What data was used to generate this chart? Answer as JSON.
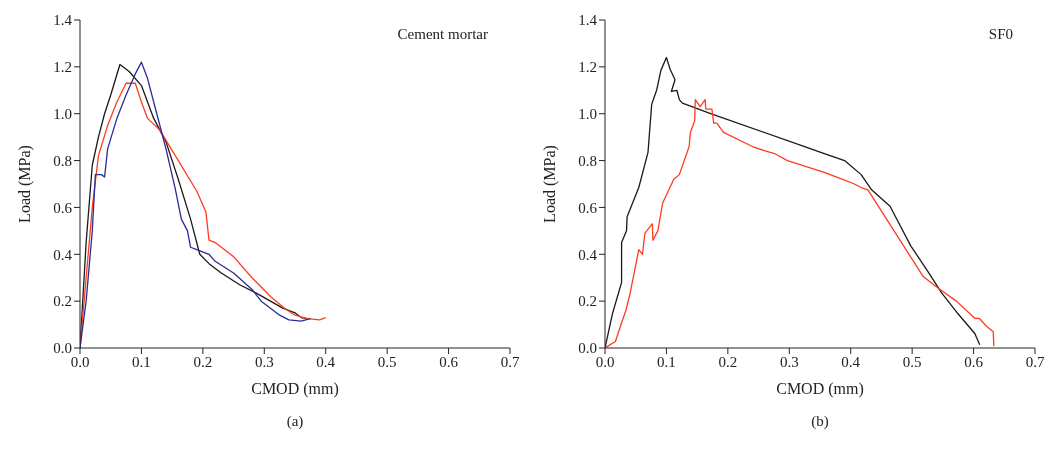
{
  "chart_data": [
    {
      "type": "line",
      "xlabel": "CMOD (mm)",
      "ylabel": "Load (MPa)",
      "annotations": [
        "Cement mortar",
        "(a)"
      ],
      "xlim": [
        0,
        0.7
      ],
      "ylim": [
        0,
        1.4
      ],
      "xticks": [
        {
          "value": 0,
          "label": "0.0"
        },
        {
          "value": 0.1,
          "label": "0.1"
        },
        {
          "value": 0.2,
          "label": "0.2"
        },
        {
          "value": 0.3,
          "label": "0.3"
        },
        {
          "value": 0.4,
          "label": "0.4"
        },
        {
          "value": 0.5,
          "label": "0.5"
        },
        {
          "value": 0.6,
          "label": "0.6"
        },
        {
          "value": 0.7,
          "label": "0.7"
        }
      ],
      "yticks": [
        {
          "value": 0,
          "label": "0.0"
        },
        {
          "value": 0.2,
          "label": "0.2"
        },
        {
          "value": 0.4,
          "label": "0.4"
        },
        {
          "value": 0.6,
          "label": "0.6"
        },
        {
          "value": 0.8,
          "label": "0.8"
        },
        {
          "value": 1.0,
          "label": "1.0"
        },
        {
          "value": 1.2,
          "label": "1.2"
        },
        {
          "value": 1.4,
          "label": "1.4"
        }
      ],
      "marker": "none",
      "series": [
        {
          "color": "#1a1a1a",
          "x": [
            0,
            0.01,
            0.02,
            0.03,
            0.04,
            0.05,
            0.065,
            0.08,
            0.1,
            0.12,
            0.14,
            0.16,
            0.18,
            0.195,
            0.21,
            0.23,
            0.26,
            0.29,
            0.31,
            0.33,
            0.35,
            0.36,
            0.37
          ],
          "values": [
            0,
            0.45,
            0.78,
            0.9,
            1.0,
            1.08,
            1.21,
            1.18,
            1.12,
            0.98,
            0.88,
            0.72,
            0.55,
            0.4,
            0.36,
            0.32,
            0.27,
            0.23,
            0.2,
            0.17,
            0.15,
            0.13,
            0.125
          ]
        },
        {
          "color": "#ff3b1f",
          "x": [
            0,
            0.01,
            0.02,
            0.03,
            0.045,
            0.06,
            0.075,
            0.09,
            0.1,
            0.11,
            0.13,
            0.16,
            0.19,
            0.205,
            0.21,
            0.22,
            0.25,
            0.28,
            0.31,
            0.333,
            0.35,
            0.37,
            0.39,
            0.4
          ],
          "values": [
            0,
            0.3,
            0.6,
            0.82,
            0.95,
            1.05,
            1.13,
            1.13,
            1.05,
            0.98,
            0.93,
            0.8,
            0.67,
            0.58,
            0.46,
            0.45,
            0.39,
            0.3,
            0.22,
            0.17,
            0.14,
            0.125,
            0.12,
            0.13
          ]
        },
        {
          "color": "#2b2b9a",
          "x": [
            0,
            0.01,
            0.02,
            0.025,
            0.035,
            0.04,
            0.045,
            0.06,
            0.075,
            0.09,
            0.1,
            0.11,
            0.125,
            0.14,
            0.155,
            0.165,
            0.175,
            0.18,
            0.19,
            0.21,
            0.22,
            0.25,
            0.28,
            0.295,
            0.31,
            0.325,
            0.34,
            0.36,
            0.375
          ],
          "values": [
            0,
            0.2,
            0.5,
            0.74,
            0.74,
            0.73,
            0.85,
            0.98,
            1.08,
            1.17,
            1.22,
            1.15,
            1.0,
            0.85,
            0.68,
            0.55,
            0.5,
            0.43,
            0.42,
            0.4,
            0.37,
            0.32,
            0.25,
            0.2,
            0.17,
            0.14,
            0.12,
            0.115,
            0.125
          ]
        }
      ]
    },
    {
      "type": "line",
      "xlabel": "CMOD (mm)",
      "ylabel": "Load (MPa)",
      "annotations": [
        "SF0",
        "(b)"
      ],
      "xlim": [
        0,
        0.7
      ],
      "ylim": [
        0,
        1.4
      ],
      "xticks": [
        {
          "value": 0,
          "label": "0.0"
        },
        {
          "value": 0.1,
          "label": "0.1"
        },
        {
          "value": 0.2,
          "label": "0.2"
        },
        {
          "value": 0.3,
          "label": "0.3"
        },
        {
          "value": 0.4,
          "label": "0.4"
        },
        {
          "value": 0.5,
          "label": "0.5"
        },
        {
          "value": 0.6,
          "label": "0.6"
        },
        {
          "value": 0.7,
          "label": "0.7"
        }
      ],
      "yticks": [
        {
          "value": 0,
          "label": "0.0"
        },
        {
          "value": 0.2,
          "label": "0.2"
        },
        {
          "value": 0.4,
          "label": "0.4"
        },
        {
          "value": 0.6,
          "label": "0.6"
        },
        {
          "value": 0.8,
          "label": "0.8"
        },
        {
          "value": 1.0,
          "label": "1.0"
        },
        {
          "value": 1.2,
          "label": "1.2"
        },
        {
          "value": 1.4,
          "label": "1.4"
        }
      ],
      "marker": "none",
      "series": [
        {
          "color": "#1a1a1a",
          "x": [
            0,
            0.012,
            0.027,
            0.027,
            0.035,
            0.036,
            0.055,
            0.07,
            0.076,
            0.084,
            0.091,
            0.1,
            0.106,
            0.114,
            0.108,
            0.117,
            0.121,
            0.126,
            0.172,
            0.325,
            0.357,
            0.39,
            0.417,
            0.434,
            0.464,
            0.474,
            0.498,
            0.526,
            0.548,
            0.575,
            0.602,
            0.61
          ],
          "values": [
            0,
            0.145,
            0.28,
            0.45,
            0.5,
            0.56,
            0.685,
            0.835,
            1.04,
            1.1,
            1.185,
            1.24,
            1.19,
            1.145,
            1.095,
            1.1,
            1.06,
            1.045,
            1.0,
            0.86,
            0.83,
            0.8,
            0.74,
            0.675,
            0.605,
            0.555,
            0.435,
            0.325,
            0.235,
            0.145,
            0.062,
            0.014
          ]
        },
        {
          "color": "#ff3b1f",
          "x": [
            0,
            0.004,
            0.017,
            0.026,
            0.034,
            0.041,
            0.055,
            0.061,
            0.065,
            0.077,
            0.078,
            0.086,
            0.094,
            0.112,
            0.121,
            0.137,
            0.139,
            0.146,
            0.147,
            0.155,
            0.163,
            0.164,
            0.174,
            0.177,
            0.182,
            0.193,
            0.24,
            0.262,
            0.276,
            0.297,
            0.357,
            0.387,
            0.406,
            0.417,
            0.428,
            0.518,
            0.542,
            0.572,
            0.602,
            0.61,
            0.621,
            0.632,
            0.633
          ],
          "values": [
            0,
            0.007,
            0.028,
            0.1,
            0.16,
            0.235,
            0.42,
            0.4,
            0.49,
            0.53,
            0.46,
            0.5,
            0.62,
            0.72,
            0.74,
            0.86,
            0.92,
            0.97,
            1.06,
            1.03,
            1.06,
            1.02,
            1.02,
            0.96,
            0.96,
            0.92,
            0.86,
            0.84,
            0.83,
            0.8,
            0.75,
            0.72,
            0.7,
            0.685,
            0.675,
            0.305,
            0.256,
            0.2,
            0.127,
            0.125,
            0.093,
            0.069,
            0.008
          ]
        }
      ]
    }
  ]
}
